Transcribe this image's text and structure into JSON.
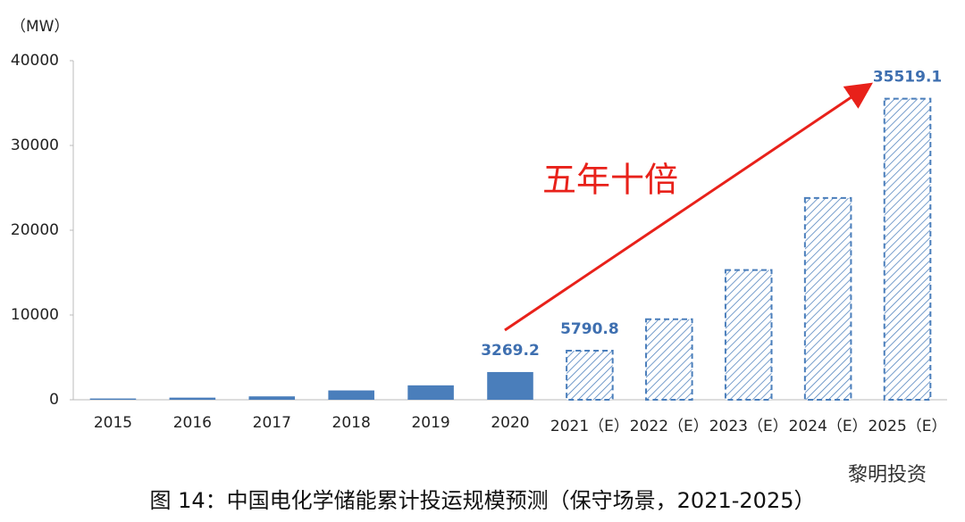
{
  "chart_data": {
    "type": "bar",
    "y_unit_label": "（MW）",
    "categories": [
      "2015",
      "2016",
      "2017",
      "2018",
      "2019",
      "2020",
      "2021（E）",
      "2022（E）",
      "2023（E）",
      "2024（E）",
      "2025（E）"
    ],
    "values": [
      150,
      250,
      400,
      1100,
      1700,
      3269.2,
      5790.8,
      9500,
      15300,
      23800,
      35519.1
    ],
    "value_labels": [
      null,
      null,
      null,
      null,
      null,
      "3269.2",
      "5790.8",
      null,
      null,
      null,
      "35519.1"
    ],
    "bar_styles": [
      "solid",
      "solid",
      "solid",
      "solid",
      "solid",
      "solid",
      "hatched",
      "hatched",
      "hatched",
      "hatched",
      "hatched"
    ],
    "color": "#4a7ebb",
    "ylim": [
      0,
      40000
    ],
    "yticks": [
      0,
      10000,
      20000,
      30000,
      40000
    ],
    "annotation": "五年十倍",
    "caption": "图 14：中国电化学储能累计投运规模预测（保守场景，2021-2025）",
    "watermark": "黎明投资"
  }
}
